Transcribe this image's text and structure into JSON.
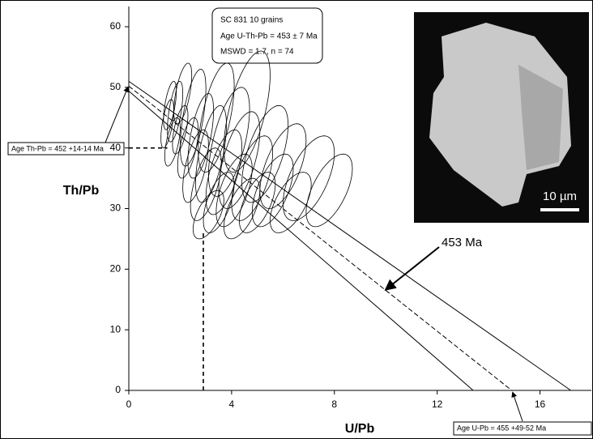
{
  "chart_data": {
    "type": "error-ellipse",
    "x_label": "U/Pb",
    "y_label": "Th/Pb",
    "xlim": [
      0,
      18
    ],
    "ylim": [
      0,
      60
    ],
    "xticks": [
      0,
      4,
      8,
      12,
      16
    ],
    "yticks": [
      0,
      10,
      20,
      30,
      40,
      50,
      60
    ],
    "color": "#000000",
    "correlation": 0.6,
    "points": [
      {
        "x": 1.5,
        "y": 44,
        "x_err": 0.25,
        "y_err": 4
      },
      {
        "x": 1.7,
        "y": 41,
        "x_err": 0.3,
        "y_err": 4
      },
      {
        "x": 1.8,
        "y": 46,
        "x_err": 0.3,
        "y_err": 5
      },
      {
        "x": 2.0,
        "y": 43,
        "x_err": 0.3,
        "y_err": 4
      },
      {
        "x": 2.1,
        "y": 49,
        "x_err": 0.35,
        "y_err": 5
      },
      {
        "x": 1.6,
        "y": 47,
        "x_err": 0.25,
        "y_err": 4
      },
      {
        "x": 2.3,
        "y": 40,
        "x_err": 0.4,
        "y_err": 5
      },
      {
        "x": 2.6,
        "y": 37,
        "x_err": 0.5,
        "y_err": 6
      },
      {
        "x": 2.8,
        "y": 42,
        "x_err": 0.5,
        "y_err": 7
      },
      {
        "x": 3.0,
        "y": 34,
        "x_err": 0.6,
        "y_err": 6
      },
      {
        "x": 3.2,
        "y": 39,
        "x_err": 0.6,
        "y_err": 8
      },
      {
        "x": 3.4,
        "y": 45,
        "x_err": 0.7,
        "y_err": 9
      },
      {
        "x": 3.5,
        "y": 31,
        "x_err": 0.6,
        "y_err": 5
      },
      {
        "x": 3.7,
        "y": 36,
        "x_err": 0.7,
        "y_err": 7
      },
      {
        "x": 3.9,
        "y": 41,
        "x_err": 0.8,
        "y_err": 9
      },
      {
        "x": 4.1,
        "y": 33,
        "x_err": 0.7,
        "y_err": 6
      },
      {
        "x": 4.3,
        "y": 38,
        "x_err": 0.8,
        "y_err": 8
      },
      {
        "x": 4.6,
        "y": 46,
        "x_err": 0.9,
        "y_err": 10
      },
      {
        "x": 4.8,
        "y": 35,
        "x_err": 0.8,
        "y_err": 7
      },
      {
        "x": 5.0,
        "y": 31,
        "x_err": 0.7,
        "y_err": 5
      },
      {
        "x": 5.3,
        "y": 39,
        "x_err": 0.9,
        "y_err": 8
      },
      {
        "x": 5.6,
        "y": 33,
        "x_err": 0.8,
        "y_err": 6
      },
      {
        "x": 6.0,
        "y": 37,
        "x_err": 0.9,
        "y_err": 7
      },
      {
        "x": 6.3,
        "y": 31,
        "x_err": 0.8,
        "y_err": 5
      },
      {
        "x": 7.0,
        "y": 35,
        "x_err": 1.0,
        "y_err": 7
      },
      {
        "x": 7.8,
        "y": 33,
        "x_err": 0.9,
        "y_err": 6
      },
      {
        "x": 3.1,
        "y": 29,
        "x_err": 0.6,
        "y_err": 4
      },
      {
        "x": 4.4,
        "y": 30,
        "x_err": 0.7,
        "y_err": 5
      },
      {
        "x": 2.5,
        "y": 45,
        "x_err": 0.5,
        "y_err": 8
      }
    ],
    "isochron_lines": [
      {
        "x": [
          0,
          17.2
        ],
        "y": [
          51,
          0
        ]
      },
      {
        "x": [
          0,
          14.9
        ],
        "y": [
          50.2,
          0
        ],
        "dashed": true
      },
      {
        "x": [
          0,
          13.4
        ],
        "y": [
          49.4,
          0
        ]
      }
    ],
    "reference_lines": [
      {
        "x": [
          0,
          1.5
        ],
        "y": [
          40,
          40
        ]
      },
      {
        "x": [
          2.9,
          2.9
        ],
        "y": [
          0,
          26
        ]
      }
    ],
    "info_box": [
      "SC 831    10 grains",
      "Age U-Th-Pb = 453  ± 7 Ma",
      "MSWD = 1.7, n = 74"
    ],
    "th_pb_age": "Age Th-Pb = 452 +14-14 Ma",
    "u_pb_age": "Age U-Pb = 455 +49-52 Ma",
    "line_label": "453 Ma",
    "scale_bar": "10 µm"
  }
}
